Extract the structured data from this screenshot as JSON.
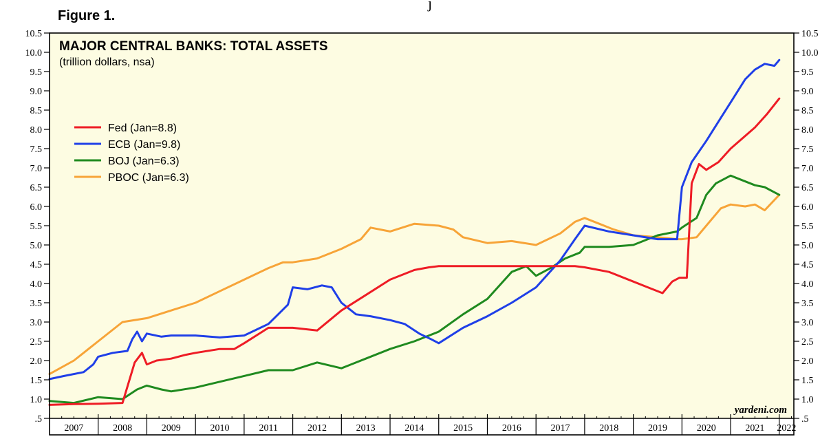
{
  "figure_label": "Figure 1.",
  "stray_glyph": "j",
  "source": "yardeni.com",
  "colors": {
    "background": "#fdfce2",
    "Fed": "#ee1c25",
    "ECB": "#1f3fe8",
    "BOJ": "#1f8a1f",
    "PBOC": "#f7a438"
  },
  "chart_data": {
    "type": "line",
    "title": "MAJOR CENTRAL BANKS: TOTAL ASSETS",
    "subtitle": "(trillion dollars, nsa)",
    "ylim": [
      0.5,
      10.5
    ],
    "y_ticks": [
      ".5",
      "1.0",
      "1.5",
      "2.0",
      "2.5",
      "3.0",
      "3.5",
      "4.0",
      "4.5",
      "5.0",
      "5.5",
      "6.0",
      "6.5",
      "7.0",
      "7.5",
      "8.0",
      "8.5",
      "9.0",
      "9.5",
      "10.0",
      "10.5"
    ],
    "x_years": [
      "2007",
      "2008",
      "2009",
      "2010",
      "2011",
      "2012",
      "2013",
      "2014",
      "2015",
      "2016",
      "2017",
      "2018",
      "2019",
      "2020",
      "2021",
      "2022"
    ],
    "xlim": [
      2007.0,
      2022.3
    ],
    "grid": false,
    "legend_position": "top-left",
    "series": [
      {
        "name": "Fed (Jan=8.8)",
        "key": "Fed",
        "x": [
          2007.0,
          2007.5,
          2008.0,
          2008.5,
          2008.75,
          2008.9,
          2009.0,
          2009.2,
          2009.5,
          2009.8,
          2010.0,
          2010.5,
          2010.8,
          2011.0,
          2011.5,
          2012.0,
          2012.5,
          2013.0,
          2013.5,
          2014.0,
          2014.5,
          2014.8,
          2015.0,
          2015.5,
          2016.0,
          2016.5,
          2017.0,
          2017.5,
          2017.8,
          2018.0,
          2018.5,
          2019.0,
          2019.3,
          2019.6,
          2019.8,
          2019.95,
          2020.1,
          2020.2,
          2020.35,
          2020.5,
          2020.75,
          2021.0,
          2021.5,
          2021.75,
          2022.0
        ],
        "y": [
          0.85,
          0.87,
          0.88,
          0.9,
          1.95,
          2.2,
          1.9,
          2.0,
          2.05,
          2.15,
          2.2,
          2.3,
          2.3,
          2.45,
          2.85,
          2.85,
          2.78,
          3.3,
          3.7,
          4.1,
          4.35,
          4.42,
          4.45,
          4.45,
          4.45,
          4.45,
          4.45,
          4.45,
          4.45,
          4.42,
          4.3,
          4.05,
          3.9,
          3.75,
          4.05,
          4.15,
          4.15,
          6.6,
          7.1,
          6.95,
          7.15,
          7.5,
          8.05,
          8.4,
          8.8
        ]
      },
      {
        "name": "ECB (Jan=9.8)",
        "key": "ECB",
        "x": [
          2007.0,
          2007.3,
          2007.7,
          2007.9,
          2008.0,
          2008.3,
          2008.6,
          2008.7,
          2008.8,
          2008.9,
          2009.0,
          2009.3,
          2009.5,
          2010.0,
          2010.5,
          2011.0,
          2011.5,
          2011.7,
          2011.9,
          2012.0,
          2012.3,
          2012.6,
          2012.8,
          2013.0,
          2013.3,
          2013.6,
          2014.0,
          2014.3,
          2014.6,
          2014.85,
          2015.0,
          2015.5,
          2016.0,
          2016.5,
          2017.0,
          2017.5,
          2017.8,
          2018.0,
          2018.5,
          2019.0,
          2019.5,
          2019.9,
          2020.0,
          2020.2,
          2020.5,
          2020.8,
          2021.0,
          2021.3,
          2021.5,
          2021.7,
          2021.9,
          2022.0
        ],
        "y": [
          1.52,
          1.6,
          1.7,
          1.9,
          2.1,
          2.2,
          2.25,
          2.55,
          2.75,
          2.5,
          2.7,
          2.62,
          2.65,
          2.65,
          2.6,
          2.65,
          2.95,
          3.2,
          3.45,
          3.9,
          3.85,
          3.95,
          3.9,
          3.5,
          3.2,
          3.15,
          3.05,
          2.95,
          2.7,
          2.55,
          2.45,
          2.85,
          3.15,
          3.5,
          3.9,
          4.6,
          5.15,
          5.5,
          5.35,
          5.25,
          5.15,
          5.15,
          6.5,
          7.15,
          7.7,
          8.3,
          8.7,
          9.3,
          9.55,
          9.7,
          9.65,
          9.8
        ]
      },
      {
        "name": "BOJ (Jan=6.3)",
        "key": "BOJ",
        "x": [
          2007.0,
          2007.5,
          2008.0,
          2008.5,
          2008.8,
          2009.0,
          2009.3,
          2009.5,
          2010.0,
          2010.5,
          2011.0,
          2011.5,
          2012.0,
          2012.5,
          2013.0,
          2013.5,
          2014.0,
          2014.5,
          2015.0,
          2015.5,
          2016.0,
          2016.5,
          2016.8,
          2017.0,
          2017.3,
          2017.6,
          2017.9,
          2018.0,
          2018.5,
          2019.0,
          2019.5,
          2019.9,
          2020.0,
          2020.3,
          2020.5,
          2020.7,
          2021.0,
          2021.2,
          2021.5,
          2021.7,
          2022.0
        ],
        "y": [
          0.95,
          0.9,
          1.05,
          1.0,
          1.25,
          1.35,
          1.25,
          1.2,
          1.3,
          1.45,
          1.6,
          1.75,
          1.75,
          1.95,
          1.8,
          2.05,
          2.3,
          2.5,
          2.75,
          3.2,
          3.6,
          4.3,
          4.45,
          4.2,
          4.4,
          4.65,
          4.8,
          4.95,
          4.95,
          5.0,
          5.25,
          5.35,
          5.45,
          5.7,
          6.3,
          6.6,
          6.8,
          6.7,
          6.55,
          6.5,
          6.3
        ]
      },
      {
        "name": "PBOC (Jan=6.3)",
        "key": "PBOC",
        "x": [
          2007.0,
          2007.5,
          2008.0,
          2008.5,
          2009.0,
          2009.5,
          2010.0,
          2010.5,
          2011.0,
          2011.5,
          2011.8,
          2012.0,
          2012.5,
          2013.0,
          2013.4,
          2013.6,
          2014.0,
          2014.5,
          2015.0,
          2015.3,
          2015.5,
          2016.0,
          2016.5,
          2017.0,
          2017.5,
          2017.8,
          2018.0,
          2018.3,
          2018.6,
          2019.0,
          2019.5,
          2019.9,
          2020.0,
          2020.3,
          2020.5,
          2020.8,
          2021.0,
          2021.3,
          2021.5,
          2021.7,
          2022.0
        ],
        "y": [
          1.65,
          2.0,
          2.5,
          3.0,
          3.1,
          3.3,
          3.5,
          3.8,
          4.1,
          4.4,
          4.55,
          4.55,
          4.65,
          4.9,
          5.15,
          5.45,
          5.35,
          5.55,
          5.5,
          5.4,
          5.2,
          5.05,
          5.1,
          5.0,
          5.3,
          5.6,
          5.7,
          5.55,
          5.4,
          5.25,
          5.2,
          5.15,
          5.15,
          5.2,
          5.5,
          5.95,
          6.05,
          6.0,
          6.05,
          5.9,
          6.3
        ]
      }
    ]
  }
}
